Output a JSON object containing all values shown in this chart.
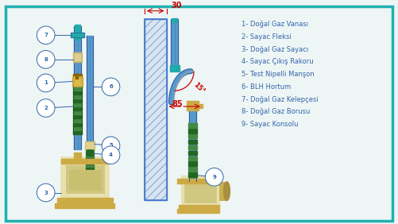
{
  "bg": "#eef5f5",
  "border_color": "#20b0b0",
  "legend_items": [
    "1- Doğal Gaz Vanası",
    "2- Sayac Fleksi",
    "3- Doğal Gaz Sayacı",
    "4- Sayac Çıkış Rakoru",
    "5- Test Nipelli Manşon",
    "6- BLH Hortum",
    "7- Doğal Gaz Kelepçesi",
    "8- Doğal Gaz Borusu",
    "9- Sayac Konsolu"
  ],
  "dim_label": "30",
  "dim_angle_label": "15°",
  "dim_angle2_label": "85",
  "lc": "#3366aa",
  "dc": "#cc0000",
  "wc": "#4477cc",
  "bc": "#5599cc",
  "gc": "#226622",
  "gld": "#ccaa44",
  "tc": "#20aaaa",
  "pipe_dark": "#335599"
}
